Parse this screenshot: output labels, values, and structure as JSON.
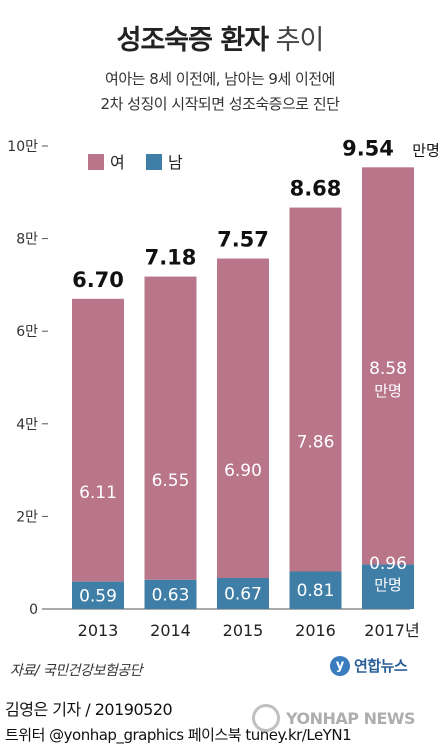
{
  "header": {
    "title_bold": "성조숙증 환자",
    "title_light": "추이",
    "subtitle_line1": "여아는 8세 이전에, 남아는 9세 이전에",
    "subtitle_line2": "2차 성징이 시작되면 성조숙증으로 진단"
  },
  "chart_data": {
    "type": "bar",
    "stacked": true,
    "categories": [
      "2013",
      "2014",
      "2015",
      "2016",
      "2017년"
    ],
    "series": [
      {
        "name": "남",
        "color": "#3f7ea6",
        "values": [
          0.59,
          0.63,
          0.67,
          0.81,
          0.96
        ],
        "labels": [
          "0.59",
          "0.63",
          "0.67",
          "0.81",
          "0.96"
        ]
      },
      {
        "name": "여",
        "color": "#b9758a",
        "values": [
          6.11,
          6.55,
          6.9,
          7.86,
          8.58
        ],
        "labels": [
          "6.11",
          "6.55",
          "6.90",
          "7.86",
          "8.58"
        ]
      }
    ],
    "totals": [
      6.7,
      7.18,
      7.57,
      8.68,
      9.54
    ],
    "total_labels": [
      "6.70",
      "7.18",
      "7.57",
      "8.68",
      "9.54"
    ],
    "last_total_unit": "만명",
    "last_bar_unit": "만명",
    "ylim": [
      0,
      10
    ],
    "yticks": [
      0,
      2,
      4,
      6,
      8,
      10
    ],
    "ytick_labels": [
      "0",
      "2만",
      "4만",
      "6만",
      "8만",
      "10만"
    ],
    "legend_position": "top-left",
    "grid": false
  },
  "footer": {
    "source": "자료/ 국민건강보험공단",
    "logo_text": "연합뉴스",
    "byline": "김영은 기자 / 20190520",
    "social": "트위터 @yonhap_graphics  페이스북 tuney.kr/LeYN1",
    "watermark": "YONHAP NEWS"
  },
  "colors": {
    "female": "#b9758a",
    "male": "#3f7ea6",
    "axis": "#555555"
  }
}
